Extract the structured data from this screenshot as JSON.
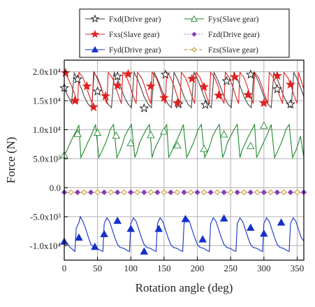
{
  "chart_data": {
    "type": "line",
    "title": "",
    "xlabel": "Rotation angle (deg)",
    "ylabel": "Force (N)",
    "xlim": [
      0,
      360
    ],
    "ylim": [
      -12500,
      22000
    ],
    "x_ticks": [
      0,
      50,
      100,
      150,
      200,
      250,
      300,
      350
    ],
    "x_tick_labels": [
      "0",
      "50",
      "100",
      "150",
      "200",
      "250",
      "300",
      "350"
    ],
    "y_ticks": [
      -10000,
      -5000,
      0,
      5000,
      10000,
      15000,
      20000
    ],
    "y_tick_labels": [
      "-1.0x10⁴",
      "-5.0x10³",
      "0.0",
      "5.0x10³",
      "1.0x10⁴",
      "1.5x10⁴",
      "2.0x10⁴"
    ],
    "grid": true,
    "legend_position": "top",
    "series": [
      {
        "name": "Fxd(Drive gear)",
        "color": "#444444",
        "marker": "open-star",
        "line": "solid",
        "x": [
          0,
          6,
          11,
          15,
          21,
          26,
          30,
          36,
          41,
          45,
          51,
          56,
          60,
          66,
          71,
          75,
          81,
          86,
          90,
          96,
          101,
          105,
          111,
          116,
          120,
          126,
          131,
          135,
          141,
          146,
          150,
          156,
          161,
          165,
          171,
          176,
          180,
          186,
          191,
          195,
          201,
          206,
          210,
          216,
          221,
          225,
          231,
          236,
          240,
          246,
          251,
          255,
          261,
          266,
          270,
          276,
          281,
          285,
          291,
          296,
          300,
          306,
          311,
          315,
          321,
          326,
          330,
          336,
          341,
          345,
          351,
          356,
          360
        ],
        "y": [
          17000,
          15700,
          14600,
          19800,
          18400,
          17000,
          15700,
          14400,
          13800,
          19900,
          18500,
          17000,
          15700,
          14400,
          13800,
          19900,
          18500,
          17000,
          15700,
          14400,
          13800,
          19900,
          18500,
          17000,
          15700,
          14400,
          13800,
          19900,
          18500,
          17000,
          15700,
          14400,
          13800,
          19900,
          18500,
          17000,
          15700,
          14400,
          13800,
          19900,
          18500,
          17000,
          15700,
          14400,
          13800,
          19900,
          18500,
          17000,
          15700,
          14400,
          13800,
          19900,
          18500,
          17000,
          15700,
          14400,
          13800,
          19900,
          18500,
          17000,
          15700,
          14400,
          13800,
          19900,
          18500,
          17000,
          15700,
          14400,
          13800,
          19900,
          18500,
          17000,
          15700
        ],
        "marker_x": [
          0,
          20,
          50,
          80,
          120,
          152,
          172,
          212,
          244,
          280,
          320,
          340
        ],
        "marker_y": [
          17200,
          18700,
          16600,
          19200,
          13700,
          19500,
          14400,
          14300,
          18400,
          19500,
          17000,
          14400
        ]
      },
      {
        "name": "Fxs(Slave gear)",
        "color": "#e02020",
        "marker": "filled-star",
        "line": "solid",
        "x": [
          0,
          5,
          11,
          16,
          20,
          22,
          28,
          33,
          37,
          42,
          44,
          50,
          55,
          59,
          64,
          66,
          72,
          77,
          81,
          86,
          88,
          94,
          99,
          103,
          108,
          110,
          116,
          121,
          125,
          130,
          132,
          138,
          143,
          147,
          152,
          154,
          160,
          165,
          169,
          174,
          176,
          182,
          187,
          191,
          196,
          198,
          204,
          209,
          213,
          218,
          220,
          226,
          231,
          235,
          240,
          242,
          248,
          253,
          257,
          262,
          264,
          270,
          275,
          279,
          284,
          286,
          292,
          297,
          301,
          306,
          308,
          314,
          319,
          323,
          328,
          330,
          336,
          341,
          345,
          350,
          352,
          360
        ],
        "y": [
          20000,
          19000,
          17500,
          16000,
          14500,
          19900,
          19000,
          17500,
          16000,
          14500,
          19900,
          19000,
          17500,
          16000,
          14500,
          19900,
          19000,
          17500,
          16000,
          14500,
          19900,
          19000,
          17500,
          16000,
          14500,
          19900,
          19000,
          17500,
          16000,
          14500,
          19900,
          19000,
          17500,
          16000,
          14500,
          19900,
          19000,
          17500,
          16000,
          14500,
          19900,
          19000,
          17500,
          16000,
          14500,
          19900,
          19000,
          17500,
          16000,
          14500,
          19900,
          19000,
          17500,
          16000,
          14500,
          19900,
          19000,
          17500,
          16000,
          14500,
          19900,
          19000,
          17500,
          16000,
          14500,
          19900,
          19000,
          17500,
          16000,
          14500,
          19900,
          19000,
          17500,
          16000,
          14500,
          19900,
          19000,
          17500,
          16000,
          14500,
          19900,
          17000
        ],
        "marker_x": [
          2,
          16,
          34,
          44,
          62,
          80,
          96,
          130,
          150,
          170,
          192,
          210,
          232,
          256,
          276,
          300,
          320,
          340
        ],
        "marker_y": [
          19800,
          15000,
          17500,
          13900,
          15800,
          17600,
          19600,
          17500,
          15500,
          14600,
          18800,
          17400,
          15900,
          19100,
          16000,
          14600,
          19300,
          17800
        ]
      },
      {
        "name": "Fyd(Drive gear)",
        "color": "#1530c8",
        "marker": "filled-triangle",
        "line": "solid",
        "x": [
          0,
          4,
          8,
          12,
          16,
          18,
          22,
          24,
          28,
          32,
          36,
          40,
          45,
          50,
          54,
          58,
          60,
          64,
          68,
          72,
          76,
          80,
          84,
          90,
          94,
          98,
          100,
          104,
          108,
          112,
          116,
          120,
          124,
          130,
          134,
          138,
          140,
          144,
          148,
          152,
          156,
          160,
          164,
          170,
          174,
          178,
          180,
          184,
          188,
          192,
          196,
          200,
          204,
          210,
          214,
          218,
          220,
          224,
          228,
          232,
          236,
          240,
          244,
          250,
          254,
          258,
          260,
          264,
          268,
          272,
          276,
          280,
          284,
          290,
          294,
          298,
          300,
          304,
          308,
          312,
          316,
          320,
          324,
          330,
          334,
          338,
          340,
          344,
          348,
          352,
          356,
          360
        ],
        "y": [
          -9200,
          -9500,
          -10200,
          -10600,
          -11000,
          -7000,
          -6000,
          -5000,
          -5800,
          -7000,
          -8500,
          -9800,
          -10300,
          -10500,
          -10800,
          -11000,
          -6200,
          -5200,
          -5800,
          -7200,
          -8600,
          -9800,
          -10300,
          -10500,
          -10800,
          -11000,
          -6200,
          -5200,
          -5800,
          -7200,
          -8600,
          -9800,
          -10300,
          -10500,
          -10800,
          -11000,
          -6200,
          -5200,
          -5800,
          -7200,
          -8600,
          -9800,
          -10300,
          -10500,
          -10800,
          -11000,
          -6200,
          -5200,
          -5800,
          -7200,
          -8600,
          -9800,
          -10300,
          -10500,
          -10800,
          -11000,
          -6200,
          -5200,
          -5800,
          -7200,
          -8600,
          -9800,
          -10300,
          -10500,
          -10800,
          -11000,
          -6200,
          -5200,
          -5800,
          -7200,
          -8600,
          -9800,
          -10300,
          -10500,
          -10800,
          -11000,
          -6200,
          -5200,
          -5800,
          -7200,
          -8600,
          -9800,
          -10300,
          -10500,
          -10800,
          -11000,
          -6200,
          -5200,
          -5800,
          -7200,
          -8600,
          -9200
        ],
        "marker_x": [
          0,
          22,
          46,
          60,
          80,
          100,
          120,
          142,
          182,
          208,
          240,
          280,
          300,
          326
        ],
        "marker_y": [
          -9300,
          -8600,
          -10200,
          -8000,
          -5700,
          -7100,
          -11000,
          -7100,
          -5400,
          -8900,
          -5300,
          -6900,
          -7900,
          -6000
        ]
      },
      {
        "name": "Fys(Slave gear)",
        "color": "#1c8a2c",
        "marker": "open-triangle",
        "line": "solid",
        "x": [
          0,
          3,
          8,
          13,
          18,
          22,
          25,
          30,
          35,
          40,
          44,
          47,
          52,
          57,
          62,
          66,
          69,
          74,
          79,
          84,
          88,
          91,
          96,
          101,
          106,
          110,
          113,
          118,
          123,
          128,
          132,
          135,
          140,
          145,
          150,
          154,
          157,
          162,
          167,
          172,
          176,
          179,
          184,
          189,
          194,
          198,
          201,
          206,
          211,
          216,
          220,
          223,
          228,
          233,
          238,
          242,
          245,
          250,
          255,
          260,
          264,
          267,
          272,
          277,
          282,
          286,
          289,
          294,
          299,
          304,
          308,
          311,
          316,
          321,
          326,
          330,
          333,
          338,
          343,
          348,
          352,
          355,
          360
        ],
        "y": [
          5500,
          6200,
          7500,
          8700,
          9800,
          10800,
          5200,
          6400,
          7700,
          8900,
          10000,
          10900,
          5200,
          6400,
          7700,
          8900,
          10000,
          10900,
          5200,
          6400,
          7700,
          8900,
          10000,
          10900,
          5200,
          6400,
          7700,
          8900,
          10000,
          10900,
          5200,
          6400,
          7700,
          8900,
          10000,
          10900,
          5200,
          6400,
          7700,
          8900,
          10000,
          10900,
          5200,
          6400,
          7700,
          8900,
          10000,
          10900,
          5200,
          6400,
          7700,
          8900,
          10000,
          10900,
          5200,
          6400,
          7700,
          8900,
          10000,
          10900,
          5200,
          6400,
          7700,
          8900,
          10000,
          10900,
          5200,
          6400,
          7700,
          8900,
          10000,
          10900,
          5200,
          6400,
          7700,
          8900,
          10000,
          10900,
          5200,
          6400,
          7700,
          8900,
          5200
        ],
        "marker_x": [
          0,
          20,
          50,
          78,
          100,
          130,
          150,
          170,
          210,
          240,
          280,
          300
        ],
        "marker_y": [
          5600,
          9300,
          9500,
          9000,
          7700,
          9100,
          9700,
          7300,
          6700,
          9200,
          7200,
          10700
        ]
      },
      {
        "name": "Fzd(Drive gear)",
        "color": "#8a3ab9",
        "marker": "filled-diamond",
        "line": "dotted",
        "x": [
          0,
          360
        ],
        "y": [
          -800,
          -800
        ],
        "marker_x": [
          0,
          20,
          40,
          60,
          80,
          100,
          120,
          140,
          160,
          180,
          200,
          220,
          240,
          260,
          280,
          300,
          320,
          340,
          360
        ],
        "marker_y": [
          -800,
          -800,
          -800,
          -800,
          -800,
          -800,
          -800,
          -800,
          -800,
          -800,
          -800,
          -800,
          -800,
          -800,
          -800,
          -800,
          -800,
          -800,
          -800
        ]
      },
      {
        "name": "Fzs(Slave gear)",
        "color": "#b8860b",
        "marker": "open-diamond",
        "line": "dashed",
        "x": [
          0,
          360
        ],
        "y": [
          -800,
          -800
        ],
        "marker_x": [
          10,
          30,
          50,
          70,
          90,
          110,
          130,
          150,
          170,
          190,
          210,
          230,
          250,
          270,
          290,
          310,
          330,
          350
        ],
        "marker_y": [
          -800,
          -800,
          -800,
          -800,
          -800,
          -800,
          -800,
          -800,
          -800,
          -800,
          -800,
          -800,
          -800,
          -800,
          -800,
          -800,
          -800,
          -800
        ]
      }
    ]
  }
}
